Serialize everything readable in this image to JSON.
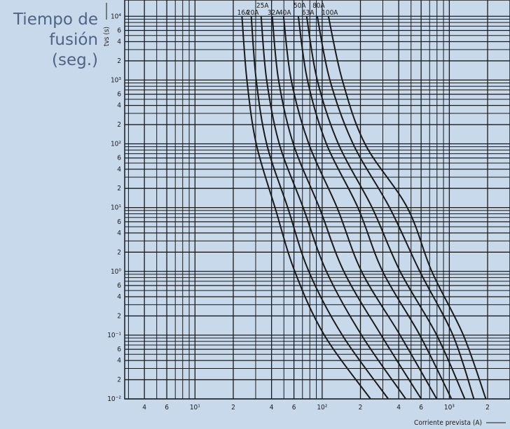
{
  "chart_data": {
    "type": "line",
    "title": "Tiempo de fusión (seg.)",
    "ylabel": "tvs (s)",
    "xlabel": "Corriente prevista (A)",
    "log_x": true,
    "log_y": true,
    "grid": true,
    "xlim": [
      2.8,
      3000
    ],
    "ylim": [
      0.01,
      18000
    ],
    "xticks": [
      4,
      6,
      {
        "value": 10,
        "label": "10¹"
      },
      {
        "value": 20,
        "label": "2"
      },
      {
        "value": 40,
        "label": "4"
      },
      {
        "value": 60,
        "label": "6"
      },
      {
        "value": 100,
        "label": "10²"
      },
      {
        "value": 200,
        "label": "2"
      },
      {
        "value": 400,
        "label": "4"
      },
      {
        "value": 600,
        "label": "6"
      },
      {
        "value": 1000,
        "label": "10³"
      },
      {
        "value": 2000,
        "label": "2"
      }
    ],
    "xminor": [
      3,
      5,
      7,
      8,
      9,
      30,
      50,
      70,
      80,
      90,
      300,
      500,
      700,
      800,
      900
    ],
    "yticks": [
      {
        "value": 0.01,
        "label": "10⁻²"
      },
      {
        "value": 0.02,
        "label": "2"
      },
      {
        "value": 0.04,
        "label": "4"
      },
      {
        "value": 0.06,
        "label": "6"
      },
      {
        "value": 0.1,
        "label": "10⁻¹"
      },
      {
        "value": 0.2,
        "label": "2"
      },
      {
        "value": 0.4,
        "label": "4"
      },
      {
        "value": 0.6,
        "label": "6"
      },
      {
        "value": 1,
        "label": "10⁰"
      },
      2,
      4,
      6,
      {
        "value": 10,
        "label": "10¹"
      },
      {
        "value": 20,
        "label": "2"
      },
      {
        "value": 40,
        "label": "4"
      },
      {
        "value": 60,
        "label": "6"
      },
      {
        "value": 100,
        "label": "10²"
      },
      {
        "value": 200,
        "label": "2"
      },
      {
        "value": 400,
        "label": "4"
      },
      {
        "value": 600,
        "label": "6"
      },
      {
        "value": 1000,
        "label": "10³"
      },
      {
        "value": 2000,
        "label": "2"
      },
      {
        "value": 4000,
        "label": "4"
      },
      {
        "value": 6000,
        "label": "6"
      },
      {
        "value": 10000,
        "label": "10⁴"
      }
    ],
    "yminor": [
      0.03,
      0.05,
      0.07,
      0.08,
      0.09,
      0.3,
      0.5,
      0.7,
      0.8,
      0.9,
      3,
      5,
      7,
      8,
      9,
      30,
      50,
      70,
      80,
      90,
      300,
      500,
      700,
      800,
      900,
      3000,
      5000,
      7000,
      8000,
      9000
    ],
    "series": [
      {
        "name": "16A",
        "color": "#1a1a1a",
        "x": [
          23.4,
          25.6,
          30.3,
          42.6,
          60.9,
          104,
          240
        ],
        "values": [
          10000,
          1000,
          100,
          10,
          1,
          0.1,
          0.01
        ]
      },
      {
        "name": "20A",
        "color": "#1a1a1a",
        "x": [
          27.7,
          30.3,
          36.6,
          53.6,
          78.5,
          144,
          331
        ],
        "values": [
          10000,
          1000,
          100,
          10,
          1,
          0.1,
          0.01
        ]
      },
      {
        "name": "25A",
        "color": "#1a1a1a",
        "x": [
          33.1,
          36.6,
          46.0,
          70.9,
          108,
          204,
          454
        ],
        "values": [
          10000,
          1000,
          100,
          10,
          1,
          0.1,
          0.01
        ]
      },
      {
        "name": "32A",
        "color": "#1a1a1a",
        "x": [
          40.5,
          45.4,
          59.3,
          95,
          148,
          291,
          601
        ],
        "values": [
          10000,
          1000,
          100,
          10,
          1,
          0.1,
          0.01
        ]
      },
      {
        "name": "40A",
        "color": "#1a1a1a",
        "x": [
          49.7,
          57.1,
          78.5,
          131,
          204,
          410,
          796
        ],
        "values": [
          10000,
          1000,
          100,
          10,
          1,
          0.1,
          0.01
        ]
      },
      {
        "name": "50A",
        "color": "#1a1a1a",
        "x": [
          64.9,
          76.6,
          108,
          191,
          299,
          586,
          1040
        ],
        "values": [
          10000,
          1000,
          100,
          10,
          1,
          0.1,
          0.01
        ]
      },
      {
        "name": "63A",
        "color": "#1a1a1a",
        "x": [
          75.5,
          91.5,
          134,
          247,
          410,
          796,
          1324
        ],
        "values": [
          10000,
          1000,
          100,
          10,
          1,
          0.1,
          0.01
        ]
      },
      {
        "name": "80A",
        "color": "#1a1a1a",
        "x": [
          91.5,
          115,
          175,
          339,
          586,
          1067,
          1560
        ],
        "values": [
          10000,
          1000,
          100,
          10,
          1,
          0.1,
          0.01
        ]
      },
      {
        "name": "100A",
        "color": "#1a1a1a",
        "x": [
          112,
          144,
          217,
          467,
          728,
          1289,
          1937
        ],
        "values": [
          10000,
          1000,
          100,
          10,
          1,
          0.1,
          0.01
        ]
      }
    ]
  }
}
